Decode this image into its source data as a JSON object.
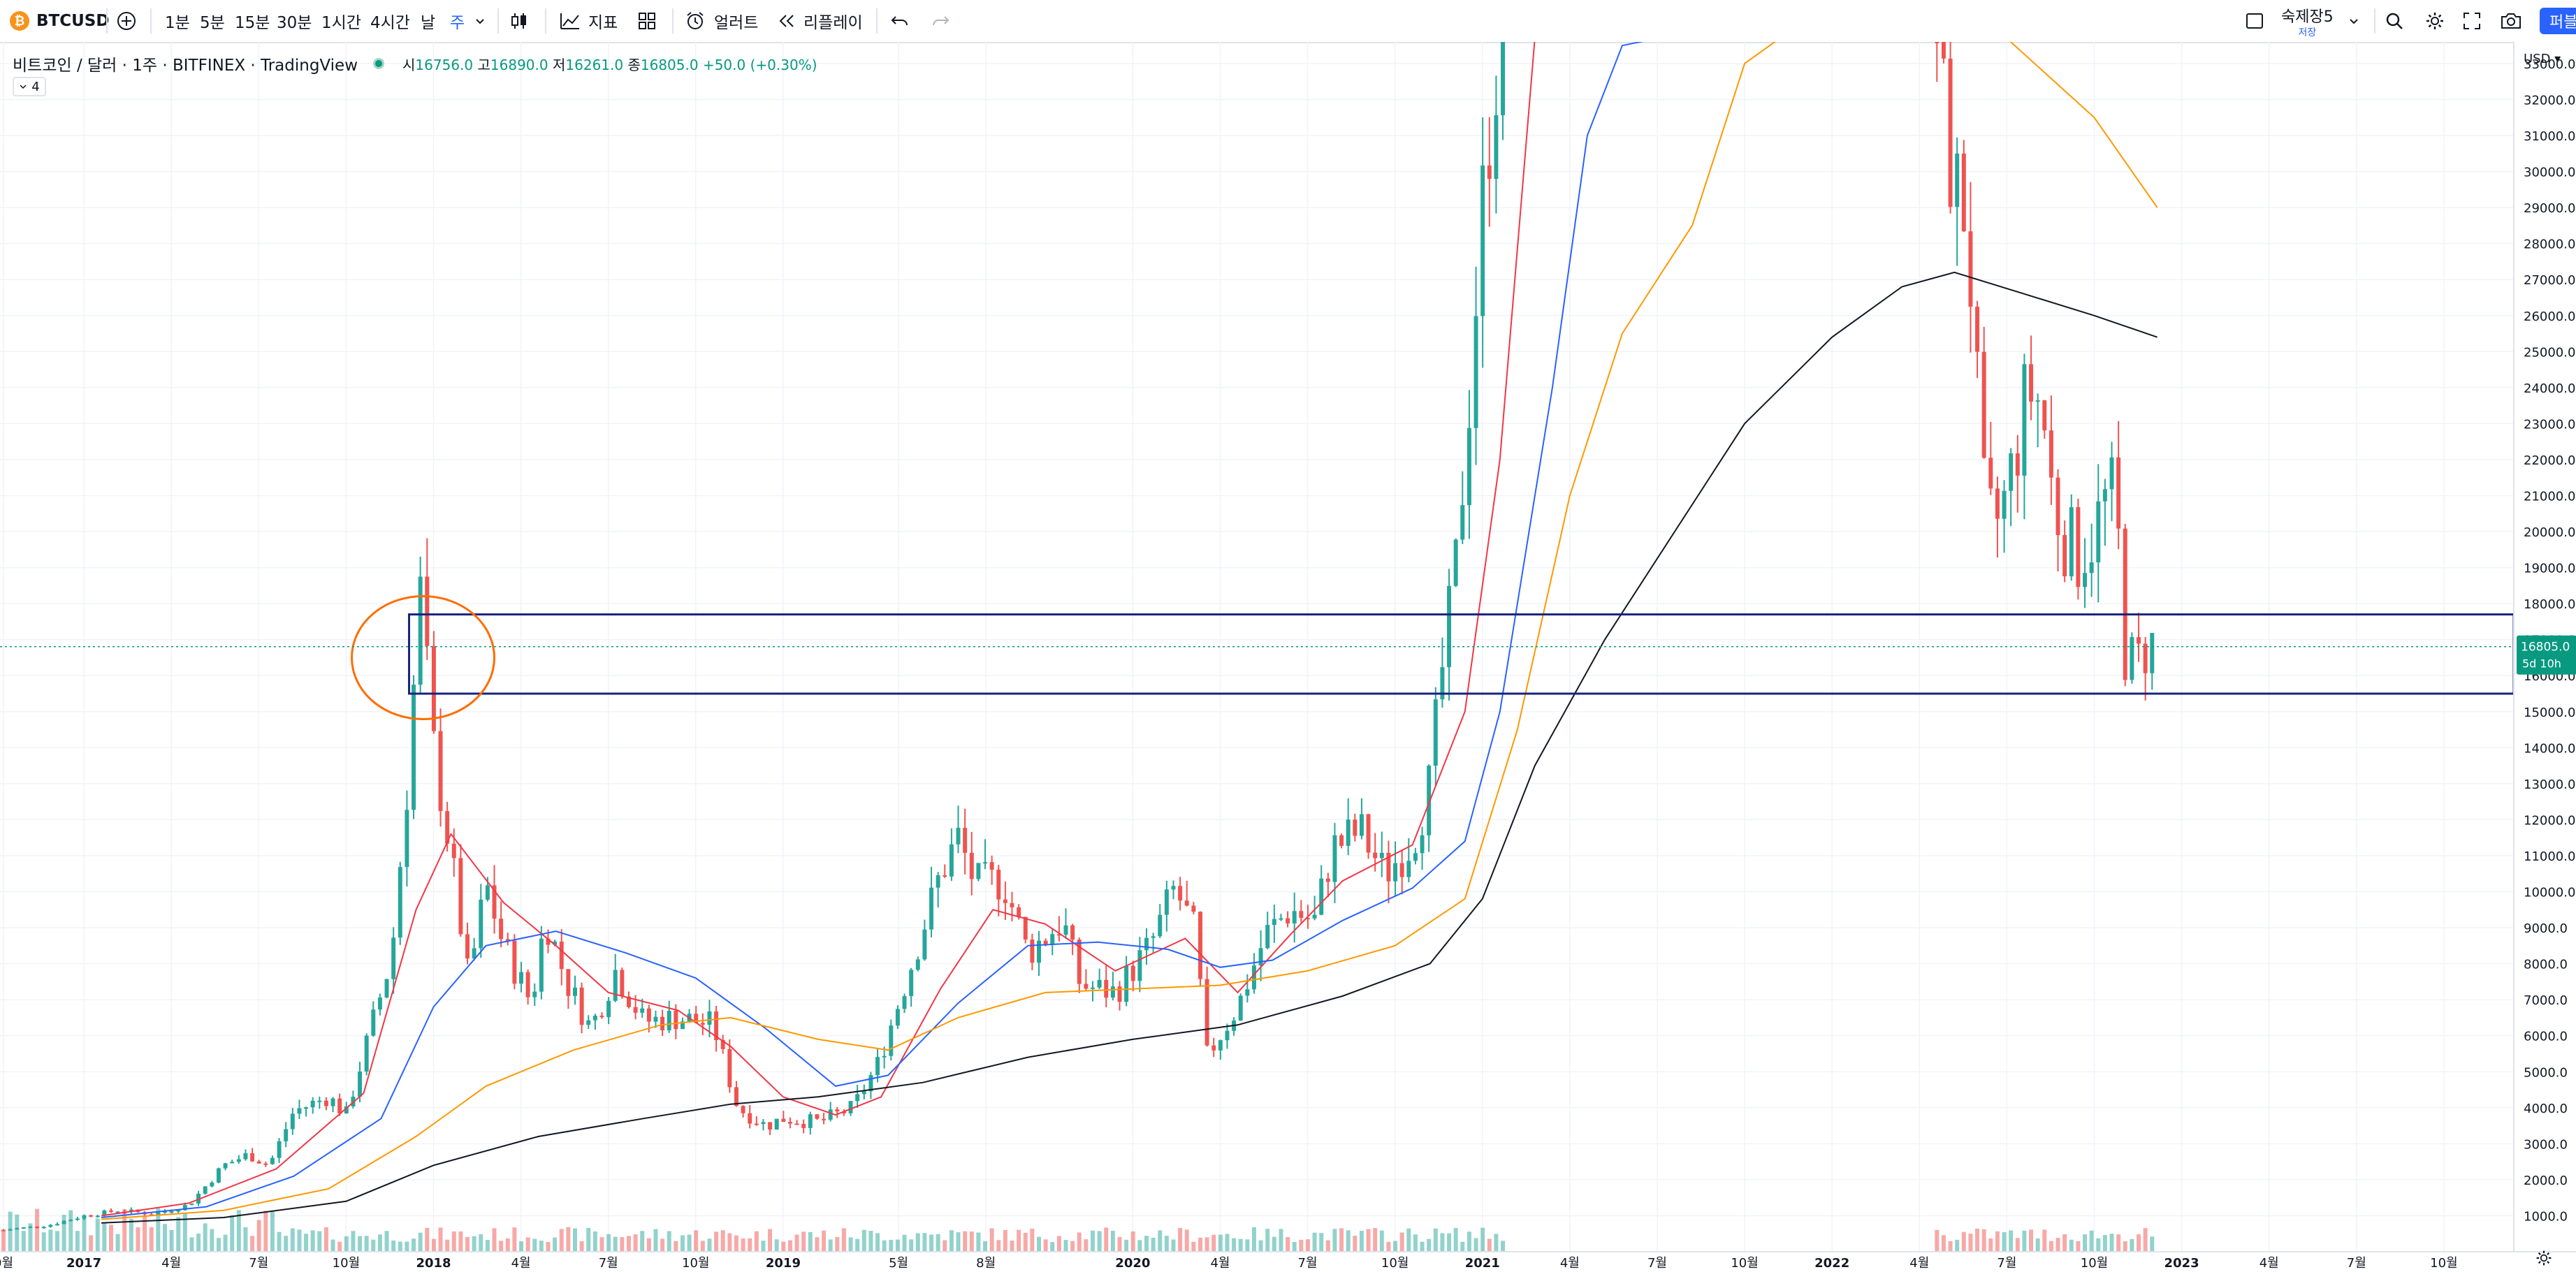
{
  "toolbar": {
    "symbol": "BTCUSD",
    "logo": "₿",
    "intervals": [
      "1분",
      "5분",
      "15분",
      "30분",
      "1시간",
      "4시간",
      "날",
      "주"
    ],
    "active_interval": "주",
    "indicators_label": "지표",
    "alerts_label": "얼러트",
    "replay_label": "리플레이",
    "layout_name": "숙제장5",
    "layout_status": "저장",
    "publish_label": "퍼블"
  },
  "legend": {
    "title": "비트코인 / 달러 · 1주 · BITFINEX · TradingView",
    "open_label": "시",
    "open": "16756.0",
    "high_label": "고",
    "high": "16890.0",
    "low_label": "저",
    "low": "16261.0",
    "close_label": "종",
    "close": "16805.0",
    "change": "+50.0 (+0.30%)",
    "indicator_count": "4"
  },
  "colors": {
    "up": "#26a69a",
    "down": "#ef5350",
    "ma_red": "#f23645",
    "ma_blue": "#2962ff",
    "ma_orange": "#ff9800",
    "ma_black": "#131722",
    "box": "#1a237e",
    "ellipse": "#ff6d00",
    "price_tag": "#089981"
  },
  "chart_data": {
    "type": "candlestick",
    "interval": "1W",
    "currency_label": "USD",
    "price_ticks": [
      1000,
      2000,
      3000,
      4000,
      5000,
      6000,
      7000,
      8000,
      9000,
      10000,
      11000,
      12000,
      13000,
      14000,
      15000,
      16000,
      17000,
      18000,
      19000,
      20000,
      21000,
      22000,
      23000,
      24000,
      25000,
      26000,
      27000,
      28000,
      29000,
      30000,
      31000,
      32000,
      33000
    ],
    "ylim": [
      0,
      33600
    ],
    "last_price": "16805.0",
    "countdown": "5d 10h",
    "time_ticks": [
      {
        "label": "0월",
        "t": 2016.77
      },
      {
        "label": "2017",
        "t": 2017.0
      },
      {
        "label": "4월",
        "t": 2017.25
      },
      {
        "label": "7월",
        "t": 2017.5
      },
      {
        "label": "10월",
        "t": 2017.75
      },
      {
        "label": "2018",
        "t": 2018.0
      },
      {
        "label": "4월",
        "t": 2018.25
      },
      {
        "label": "7월",
        "t": 2018.5
      },
      {
        "label": "10월",
        "t": 2018.75
      },
      {
        "label": "2019",
        "t": 2019.0
      },
      {
        "label": "5월",
        "t": 2019.33
      },
      {
        "label": "8월",
        "t": 2019.58
      },
      {
        "label": "2020",
        "t": 2020.0
      },
      {
        "label": "4월",
        "t": 2020.25
      },
      {
        "label": "7월",
        "t": 2020.5
      },
      {
        "label": "10월",
        "t": 2020.75
      },
      {
        "label": "2021",
        "t": 2021.0
      },
      {
        "label": "4월",
        "t": 2021.25
      },
      {
        "label": "7월",
        "t": 2021.5
      },
      {
        "label": "10월",
        "t": 2021.75
      },
      {
        "label": "2022",
        "t": 2022.0
      },
      {
        "label": "4월",
        "t": 2022.25
      },
      {
        "label": "7월",
        "t": 2022.5
      },
      {
        "label": "10월",
        "t": 2022.75
      },
      {
        "label": "2023",
        "t": 2023.0
      },
      {
        "label": "4월",
        "t": 2023.25
      },
      {
        "label": "7월",
        "t": 2023.5
      },
      {
        "label": "10월",
        "t": 2023.75
      }
    ],
    "time_range": [
      2016.76,
      2023.95
    ],
    "price_path": [
      [
        2016.77,
        610
      ],
      [
        2016.9,
        740
      ],
      [
        2017.0,
        1000
      ],
      [
        2017.1,
        1150
      ],
      [
        2017.2,
        1050
      ],
      [
        2017.3,
        1300
      ],
      [
        2017.4,
        2400
      ],
      [
        2017.47,
        2700
      ],
      [
        2017.53,
        2400
      ],
      [
        2017.6,
        3900
      ],
      [
        2017.7,
        4300
      ],
      [
        2017.75,
        3800
      ],
      [
        2017.83,
        6500
      ],
      [
        2017.88,
        8200
      ],
      [
        2017.93,
        13500
      ],
      [
        2017.96,
        18500
      ],
      [
        2018.0,
        14000
      ],
      [
        2018.05,
        11000
      ],
      [
        2018.1,
        7500
      ],
      [
        2018.15,
        10200
      ],
      [
        2018.2,
        8500
      ],
      [
        2018.28,
        6900
      ],
      [
        2018.32,
        9300
      ],
      [
        2018.38,
        7500
      ],
      [
        2018.45,
        6200
      ],
      [
        2018.52,
        7800
      ],
      [
        2018.6,
        6400
      ],
      [
        2018.7,
        6500
      ],
      [
        2018.8,
        6300
      ],
      [
        2018.87,
        4000
      ],
      [
        2018.95,
        3500
      ],
      [
        2019.0,
        3700
      ],
      [
        2019.1,
        3600
      ],
      [
        2019.2,
        4000
      ],
      [
        2019.27,
        5200
      ],
      [
        2019.35,
        7500
      ],
      [
        2019.45,
        10500
      ],
      [
        2019.5,
        11500
      ],
      [
        2019.55,
        10200
      ],
      [
        2019.63,
        10300
      ],
      [
        2019.7,
        8300
      ],
      [
        2019.8,
        9200
      ],
      [
        2019.85,
        7400
      ],
      [
        2019.95,
        7200
      ],
      [
        2020.05,
        8500
      ],
      [
        2020.12,
        10100
      ],
      [
        2020.18,
        8800
      ],
      [
        2020.21,
        5400
      ],
      [
        2020.3,
        6800
      ],
      [
        2020.38,
        8800
      ],
      [
        2020.45,
        9500
      ],
      [
        2020.52,
        9200
      ],
      [
        2020.57,
        11200
      ],
      [
        2020.65,
        11700
      ],
      [
        2020.72,
        10500
      ],
      [
        2020.8,
        11400
      ],
      [
        2020.85,
        13000
      ],
      [
        2020.88,
        15800
      ],
      [
        2020.92,
        18500
      ],
      [
        2020.96,
        23500
      ],
      [
        2021.0,
        29000
      ],
      [
        2021.03,
        32500
      ],
      [
        2021.06,
        34000
      ]
    ],
    "price_path_2": [
      [
        2022.3,
        34000
      ],
      [
        2022.32,
        31500
      ],
      [
        2022.35,
        29500
      ],
      [
        2022.38,
        29000
      ],
      [
        2022.4,
        26500
      ],
      [
        2022.43,
        21000
      ],
      [
        2022.46,
        20000
      ],
      [
        2022.5,
        21000
      ],
      [
        2022.53,
        22500
      ],
      [
        2022.56,
        24000
      ],
      [
        2022.6,
        23500
      ],
      [
        2022.63,
        21000
      ],
      [
        2022.66,
        20000
      ],
      [
        2022.7,
        19300
      ],
      [
        2022.74,
        19800
      ],
      [
        2022.78,
        20800
      ],
      [
        2022.81,
        21000
      ],
      [
        2022.84,
        16500
      ],
      [
        2022.87,
        16200
      ],
      [
        2022.9,
        16900
      ],
      [
        2022.93,
        16805
      ]
    ],
    "ma_series": [
      {
        "color_key": "ma_red",
        "points": [
          [
            2017.05,
            1000
          ],
          [
            2017.3,
            1350
          ],
          [
            2017.55,
            2300
          ],
          [
            2017.8,
            4400
          ],
          [
            2017.95,
            9500
          ],
          [
            2018.05,
            11600
          ],
          [
            2018.2,
            9700
          ],
          [
            2018.35,
            8500
          ],
          [
            2018.5,
            7200
          ],
          [
            2018.7,
            6700
          ],
          [
            2018.85,
            5700
          ],
          [
            2019.0,
            4300
          ],
          [
            2019.15,
            3800
          ],
          [
            2019.28,
            4300
          ],
          [
            2019.45,
            7300
          ],
          [
            2019.6,
            9500
          ],
          [
            2019.75,
            9100
          ],
          [
            2019.95,
            7800
          ],
          [
            2020.15,
            8700
          ],
          [
            2020.3,
            7200
          ],
          [
            2020.45,
            8800
          ],
          [
            2020.6,
            10300
          ],
          [
            2020.8,
            11300
          ],
          [
            2020.95,
            15000
          ],
          [
            2021.05,
            22000
          ],
          [
            2021.15,
            34000
          ]
        ]
      },
      {
        "color_key": "ma_blue",
        "points": [
          [
            2017.05,
            950
          ],
          [
            2017.35,
            1250
          ],
          [
            2017.6,
            2100
          ],
          [
            2017.85,
            3700
          ],
          [
            2018.0,
            6800
          ],
          [
            2018.15,
            8500
          ],
          [
            2018.35,
            8900
          ],
          [
            2018.55,
            8300
          ],
          [
            2018.75,
            7600
          ],
          [
            2018.95,
            6200
          ],
          [
            2019.15,
            4600
          ],
          [
            2019.3,
            4900
          ],
          [
            2019.5,
            6900
          ],
          [
            2019.7,
            8500
          ],
          [
            2019.9,
            8600
          ],
          [
            2020.1,
            8400
          ],
          [
            2020.25,
            7900
          ],
          [
            2020.4,
            8100
          ],
          [
            2020.6,
            9200
          ],
          [
            2020.8,
            10100
          ],
          [
            2020.95,
            11400
          ],
          [
            2021.05,
            15000
          ],
          [
            2021.2,
            24000
          ],
          [
            2021.3,
            31000
          ],
          [
            2021.4,
            33500
          ],
          [
            2021.5,
            34000
          ]
        ]
      },
      {
        "color_key": "ma_orange",
        "points": [
          [
            2017.05,
            900
          ],
          [
            2017.4,
            1150
          ],
          [
            2017.7,
            1750
          ],
          [
            2017.95,
            3200
          ],
          [
            2018.15,
            4600
          ],
          [
            2018.4,
            5600
          ],
          [
            2018.65,
            6300
          ],
          [
            2018.85,
            6500
          ],
          [
            2019.1,
            5900
          ],
          [
            2019.3,
            5600
          ],
          [
            2019.5,
            6500
          ],
          [
            2019.75,
            7200
          ],
          [
            2020.0,
            7300
          ],
          [
            2020.25,
            7400
          ],
          [
            2020.5,
            7800
          ],
          [
            2020.75,
            8500
          ],
          [
            2020.95,
            9800
          ],
          [
            2021.1,
            14500
          ],
          [
            2021.25,
            21000
          ],
          [
            2021.4,
            25500
          ],
          [
            2021.6,
            28500
          ],
          [
            2021.75,
            33000
          ],
          [
            2021.85,
            34000
          ],
          [
            2022.5,
            34000
          ],
          [
            2022.75,
            31500
          ],
          [
            2022.93,
            29000
          ]
        ]
      },
      {
        "color_key": "ma_black",
        "points": [
          [
            2017.05,
            800
          ],
          [
            2017.4,
            950
          ],
          [
            2017.75,
            1400
          ],
          [
            2018.0,
            2400
          ],
          [
            2018.3,
            3200
          ],
          [
            2018.6,
            3700
          ],
          [
            2018.85,
            4100
          ],
          [
            2019.1,
            4300
          ],
          [
            2019.4,
            4700
          ],
          [
            2019.7,
            5400
          ],
          [
            2020.0,
            5900
          ],
          [
            2020.3,
            6300
          ],
          [
            2020.6,
            7100
          ],
          [
            2020.85,
            8000
          ],
          [
            2021.0,
            9800
          ],
          [
            2021.15,
            13500
          ],
          [
            2021.35,
            17000
          ],
          [
            2021.55,
            20000
          ],
          [
            2021.75,
            23000
          ],
          [
            2022.0,
            25400
          ],
          [
            2022.2,
            26800
          ],
          [
            2022.35,
            27200
          ],
          [
            2022.55,
            26600
          ],
          [
            2022.75,
            26000
          ],
          [
            2022.93,
            25400
          ]
        ]
      }
    ],
    "support_box": {
      "t0": 2017.93,
      "t1": 2023.95,
      "p_low": 15500,
      "p_high": 17700
    },
    "highlight_circle": {
      "t": 2017.97,
      "p": 16500
    },
    "volume_max": 4000
  }
}
